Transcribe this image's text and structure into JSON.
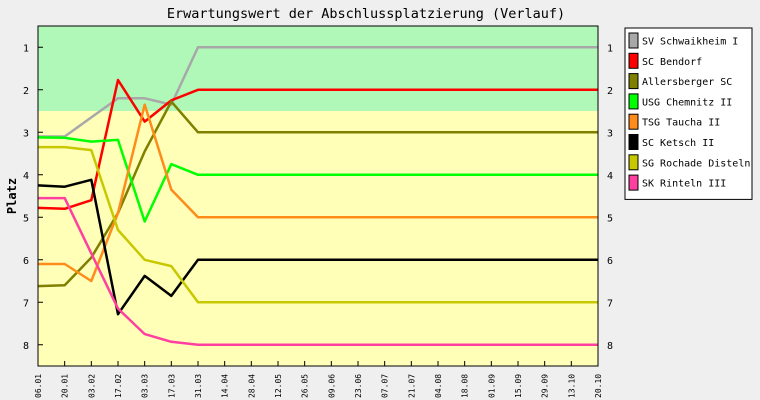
{
  "chart_data": {
    "type": "line",
    "title": "Erwartungswert der Abschlussplatzierung (Verlauf)",
    "xlabel": "",
    "ylabel": "Platz",
    "y_ticks": [
      "1",
      "2",
      "3",
      "4",
      "5",
      "6",
      "7",
      "8"
    ],
    "ylim": [
      0.5,
      8.5
    ],
    "y_inverted": true,
    "x": [
      "06.01",
      "20.01",
      "03.02",
      "17.02",
      "03.03",
      "17.03",
      "31.03",
      "14.04",
      "28.04",
      "12.05",
      "26.05",
      "09.06",
      "23.06",
      "07.07",
      "21.07",
      "04.08",
      "18.08",
      "01.09",
      "15.09",
      "29.09",
      "13.10",
      "20.10"
    ],
    "bands": [
      {
        "from": 0.5,
        "to": 2.5,
        "color": "#b0f8b8"
      },
      {
        "from": 2.5,
        "to": 8.5,
        "color": "#ffffb8"
      }
    ],
    "legend_position": "right",
    "series": [
      {
        "name": "SV Schwaikheim I",
        "color": "#a8a8a8",
        "values": [
          3.1,
          3.1,
          2.65,
          2.2,
          2.2,
          2.35,
          1,
          1,
          1,
          1,
          1,
          1,
          1,
          1,
          1,
          1,
          1,
          1,
          1,
          1,
          1,
          1
        ]
      },
      {
        "name": "SC Bendorf",
        "color": "#ff0000",
        "values": [
          4.78,
          4.8,
          4.6,
          1.77,
          2.75,
          2.25,
          2,
          2,
          2,
          2,
          2,
          2,
          2,
          2,
          2,
          2,
          2,
          2,
          2,
          2,
          2,
          2
        ]
      },
      {
        "name": "Allersberger SC",
        "color": "#808000",
        "values": [
          6.62,
          6.6,
          5.95,
          4.9,
          3.45,
          2.28,
          3,
          3,
          3,
          3,
          3,
          3,
          3,
          3,
          3,
          3,
          3,
          3,
          3,
          3,
          3,
          3
        ]
      },
      {
        "name": "USG Chemnitz II",
        "color": "#00ff00",
        "values": [
          3.12,
          3.13,
          3.22,
          3.18,
          5.1,
          3.75,
          4,
          4,
          4,
          4,
          4,
          4,
          4,
          4,
          4,
          4,
          4,
          4,
          4,
          4,
          4,
          4
        ]
      },
      {
        "name": "TSG Taucha II",
        "color": "#ff8c1a",
        "values": [
          6.1,
          6.1,
          6.5,
          4.9,
          2.35,
          4.35,
          5,
          5,
          5,
          5,
          5,
          5,
          5,
          5,
          5,
          5,
          5,
          5,
          5,
          5,
          5,
          5
        ]
      },
      {
        "name": "SC Ketsch II",
        "color": "#000000",
        "values": [
          4.25,
          4.28,
          4.12,
          7.28,
          6.38,
          6.85,
          6,
          6,
          6,
          6,
          6,
          6,
          6,
          6,
          6,
          6,
          6,
          6,
          6,
          6,
          6,
          6
        ]
      },
      {
        "name": "SG Rochade Disteln",
        "color": "#c8c800",
        "values": [
          3.35,
          3.35,
          3.42,
          5.3,
          6.0,
          6.15,
          7,
          7,
          7,
          7,
          7,
          7,
          7,
          7,
          7,
          7,
          7,
          7,
          7,
          7,
          7,
          7
        ]
      },
      {
        "name": "SK Rinteln III",
        "color": "#ff40a0",
        "values": [
          4.55,
          4.55,
          5.85,
          7.15,
          7.75,
          7.93,
          8,
          8,
          8,
          8,
          8,
          8,
          8,
          8,
          8,
          8,
          8,
          8,
          8,
          8,
          8,
          8
        ]
      }
    ]
  }
}
